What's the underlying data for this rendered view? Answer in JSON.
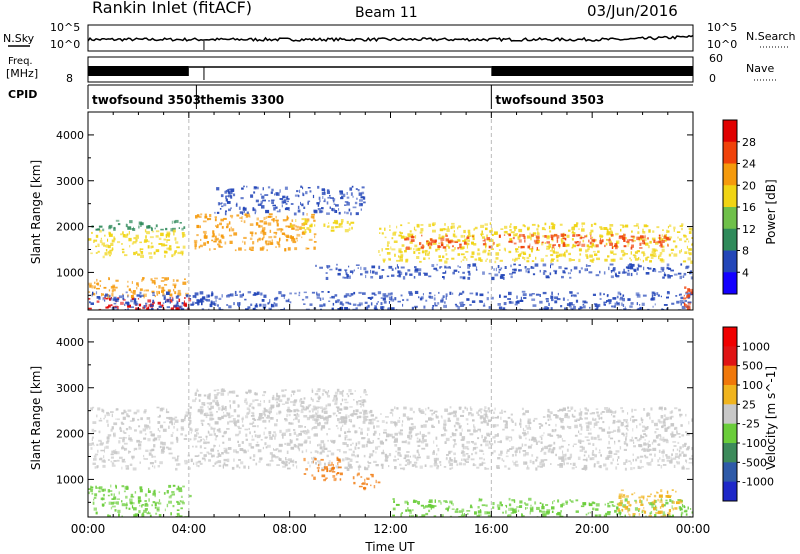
{
  "header": {
    "station": "Rankin Inlet (fitACF)",
    "beam": "Beam 11",
    "date": "03/Jun/2016"
  },
  "noise_panel": {
    "left_label": "N.Sky",
    "right_label": "N.Search",
    "left_ticks": [
      "10^5",
      "10^0"
    ],
    "right_ticks": [
      "10^5",
      "10^0"
    ]
  },
  "freq_panel": {
    "left_label_top": "Freq.",
    "left_label_unit": "[MHz]",
    "left_ticks": [
      "8"
    ],
    "right_label": "Nave",
    "right_ticks": [
      "60",
      "0"
    ]
  },
  "cpid": {
    "label": "CPID",
    "segments": [
      {
        "name": "twofsound 3503",
        "start_hour": 0.0
      },
      {
        "name": "themis 3300",
        "start_hour": 4.3
      },
      {
        "name": "twofsound 3503",
        "start_hour": 16.0
      }
    ]
  },
  "chart_data": [
    {
      "type": "heatmap",
      "parameter": "Power",
      "ylabel": "Slant Range [km]",
      "xlabel": "Time UT",
      "ylim": [
        180,
        4500
      ],
      "xlim_hours": [
        0,
        24
      ],
      "yticks": [
        1000,
        2000,
        3000,
        4000
      ],
      "colorbar_label": "Power [dB]",
      "colorbar_ticks": [
        4,
        8,
        12,
        16,
        20,
        24,
        28
      ],
      "colorbar_colors": [
        "#1400ff",
        "#2346b8",
        "#2f8a5a",
        "#6fc04a",
        "#f0d414",
        "#f59a0c",
        "#f0420a",
        "#e00000"
      ],
      "echo_regions": [
        {
          "t0": 0.0,
          "t1": 4.0,
          "r0": 180,
          "r1": 480,
          "color": "#e00000"
        },
        {
          "t0": 0.0,
          "t1": 4.0,
          "r0": 480,
          "r1": 900,
          "color": "#f59a0c"
        },
        {
          "t0": 0.0,
          "t1": 3.8,
          "r0": 1350,
          "r1": 1950,
          "color": "#f0d414"
        },
        {
          "t0": 0.0,
          "t1": 3.8,
          "r0": 1950,
          "r1": 2150,
          "color": "#2f8a5a"
        },
        {
          "t0": 4.2,
          "t1": 9.0,
          "r0": 1500,
          "r1": 2300,
          "color": "#f59a0c"
        },
        {
          "t0": 5.0,
          "t1": 11.0,
          "r0": 2300,
          "r1": 2900,
          "color": "#2346b8"
        },
        {
          "t0": 8.0,
          "t1": 10.5,
          "r0": 1900,
          "r1": 2200,
          "color": "#f0d414"
        },
        {
          "t0": 11.5,
          "t1": 24.0,
          "r0": 1250,
          "r1": 2100,
          "color": "#f0d414"
        },
        {
          "t0": 12.5,
          "t1": 23.0,
          "r0": 1550,
          "r1": 1850,
          "color": "#f0420a"
        },
        {
          "t0": 9.0,
          "t1": 24.0,
          "r0": 900,
          "r1": 1200,
          "color": "#2346b8"
        },
        {
          "t0": 0.0,
          "t1": 24.0,
          "r0": 180,
          "r1": 600,
          "color": "#2346b8"
        },
        {
          "t0": 23.6,
          "t1": 24.0,
          "r0": 180,
          "r1": 700,
          "color": "#f0420a"
        }
      ]
    },
    {
      "type": "heatmap",
      "parameter": "Velocity",
      "ylabel": "Slant Range [km]",
      "xlabel": "Time UT",
      "ylim": [
        180,
        4500
      ],
      "xlim_hours": [
        0,
        24
      ],
      "yticks": [
        1000,
        2000,
        3000,
        4000
      ],
      "xticks": [
        "00:00",
        "04:00",
        "08:00",
        "12:00",
        "16:00",
        "20:00",
        "00:00"
      ],
      "colorbar_label": "Velocity [m s^-1]",
      "colorbar_ticks": [
        1000,
        500,
        100,
        25,
        -25,
        -100,
        -500,
        -1000
      ],
      "colorbar_colors": [
        "#1e28c8",
        "#2e5aa8",
        "#3c8a5a",
        "#6acd3a",
        "#c8c8c8",
        "#f0b41e",
        "#f0780a",
        "#e01414",
        "#f00000"
      ],
      "echo_regions": [
        {
          "t0": 0.0,
          "t1": 24.0,
          "r0": 1250,
          "r1": 2600,
          "color": "#c8c8c8"
        },
        {
          "t0": 4.0,
          "t1": 11.0,
          "r0": 2300,
          "r1": 3000,
          "color": "#c8c8c8"
        },
        {
          "t0": 0.0,
          "t1": 4.0,
          "r0": 180,
          "r1": 900,
          "color": "#6acd3a"
        },
        {
          "t0": 8.5,
          "t1": 10.0,
          "r0": 1000,
          "r1": 1500,
          "color": "#f0780a"
        },
        {
          "t0": 10.5,
          "t1": 11.5,
          "r0": 800,
          "r1": 1150,
          "color": "#f0780a"
        },
        {
          "t0": 12.0,
          "t1": 24.0,
          "r0": 180,
          "r1": 600,
          "color": "#6acd3a"
        },
        {
          "t0": 21.0,
          "t1": 23.5,
          "r0": 180,
          "r1": 800,
          "color": "#f0b41e"
        }
      ]
    }
  ]
}
